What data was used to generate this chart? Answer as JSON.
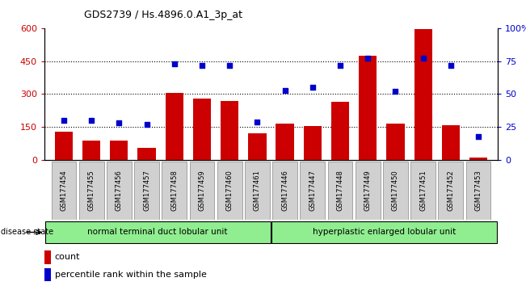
{
  "title": "GDS2739 / Hs.4896.0.A1_3p_at",
  "samples": [
    "GSM177454",
    "GSM177455",
    "GSM177456",
    "GSM177457",
    "GSM177458",
    "GSM177459",
    "GSM177460",
    "GSM177461",
    "GSM177446",
    "GSM177447",
    "GSM177448",
    "GSM177449",
    "GSM177450",
    "GSM177451",
    "GSM177452",
    "GSM177453"
  ],
  "counts": [
    130,
    90,
    90,
    55,
    305,
    280,
    270,
    120,
    165,
    155,
    265,
    475,
    165,
    595,
    160,
    10
  ],
  "percentiles": [
    30,
    30,
    28,
    27,
    73,
    72,
    72,
    29,
    53,
    55,
    72,
    77,
    52,
    77,
    72,
    18
  ],
  "group1_label": "normal terminal duct lobular unit",
  "group1_count": 8,
  "group2_label": "hyperplastic enlarged lobular unit",
  "group2_count": 8,
  "disease_state_label": "disease state",
  "bar_color": "#cc0000",
  "dot_color": "#0000cc",
  "ylim_left": [
    0,
    600
  ],
  "ylim_right": [
    0,
    100
  ],
  "yticks_left": [
    0,
    150,
    300,
    450,
    600
  ],
  "yticks_right": [
    0,
    25,
    50,
    75,
    100
  ],
  "yticklabels_right": [
    "0",
    "25",
    "50",
    "75",
    "100%"
  ],
  "legend_count_label": "count",
  "legend_pct_label": "percentile rank within the sample",
  "group_bg": "#90ee90",
  "xtick_bg": "#d0d0d0",
  "plot_area_color": "#ffffff"
}
